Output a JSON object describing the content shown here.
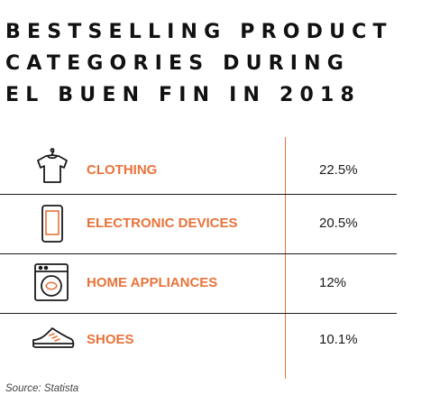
{
  "title_lines": [
    "BESTSELLING PRODUCT",
    "CATEGORIES DURING",
    "EL BUEN FIN IN 2018"
  ],
  "source": "Source: Statista",
  "colors": {
    "accent": "#e8733a",
    "text": "#1a1a1a",
    "rule": "#1a1a1a"
  },
  "chart_data": {
    "type": "table",
    "title": "BESTSELLING PRODUCT CATEGORIES DURING EL BUEN FIN IN 2018",
    "categories": [
      "CLOTHING",
      "ELECTRONIC DEVICES",
      "HOME APPLIANCES",
      "SHOES"
    ],
    "values": [
      22.5,
      20.5,
      12,
      10.1
    ],
    "value_labels": [
      "22.5%",
      "20.5%",
      "12%",
      "10.1%"
    ],
    "icons": [
      "tshirt-icon",
      "smartphone-icon",
      "washing-machine-icon",
      "sneaker-icon"
    ]
  }
}
